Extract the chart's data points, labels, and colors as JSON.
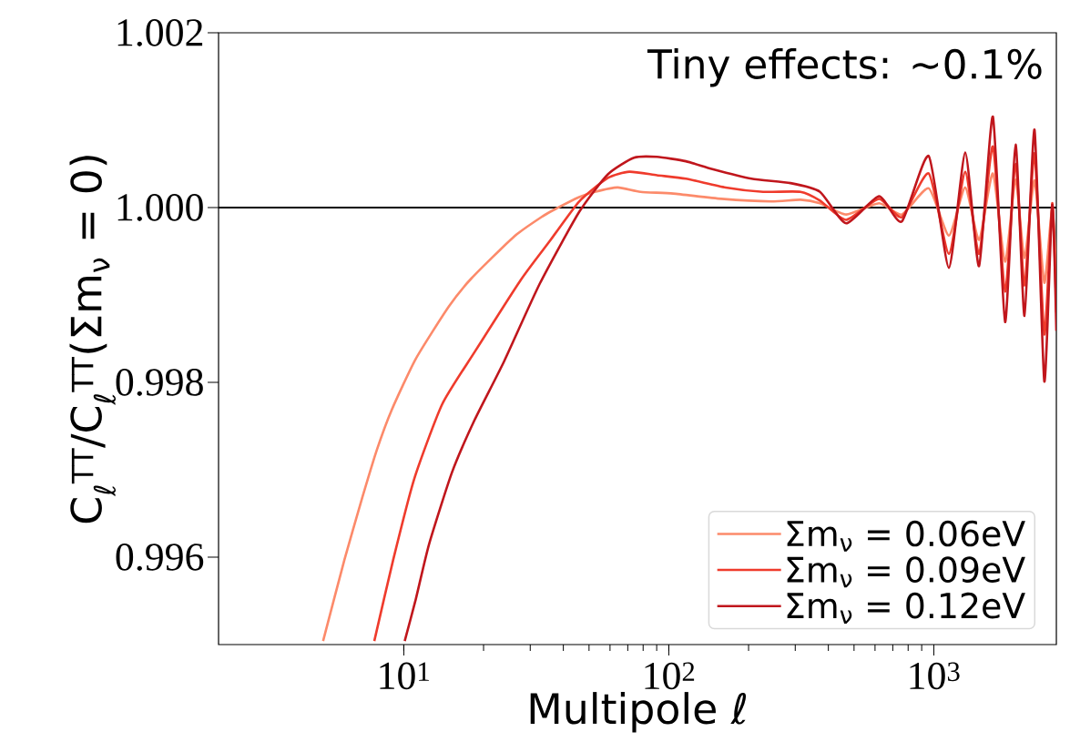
{
  "chart_data": {
    "type": "line",
    "xlabel": "Multipole ℓ",
    "ylabel": "C$_{ℓ}$$^{TT}$/C$_{ℓ}$$^{TT}$(Σm$_{ν}$ = 0)",
    "log": "x",
    "xlim": [
      2,
      2900
    ],
    "ylim": [
      0.995,
      1.002
    ],
    "xticks": [
      {
        "value": 10,
        "label": "10$^{1}$"
      },
      {
        "value": 100,
        "label": "10$^{2}$"
      },
      {
        "value": 1000,
        "label": "10$^{3}$"
      }
    ],
    "yticks": [
      0.996,
      0.998,
      {
        "value": 1,
        "label": "1.000"
      },
      1.002
    ],
    "annotations": [
      "Tiny effects: ~0.1%"
    ],
    "ref_lines": [
      {
        "axis": "y",
        "value": 1,
        "color": "#000000"
      }
    ],
    "legend": "bottom right",
    "series": [
      {
        "name": "Σm$_{ν}$ = 0.06eV",
        "color": "#fc8a6a",
        "x": [
          4.96,
          5.97,
          6.97,
          7.92,
          8.99,
          11.1,
          14.8,
          18.0,
          26.1,
          33.4,
          37.7,
          45.9,
          52.6,
          64.1,
          78.2,
          104,
          158,
          243,
          314,
          372,
          467,
          621,
          757,
          957,
          1140,
          1314,
          1482,
          1671,
          1858,
          2035,
          2199,
          2399,
          2612,
          2798,
          2900
        ],
        "values": [
          0.99504,
          0.99597,
          0.99668,
          0.99723,
          0.99768,
          0.99827,
          0.99887,
          0.99919,
          0.99967,
          0.9999,
          0.99999,
          1.00012,
          1.00018,
          1.00023,
          1.00018,
          1.00016,
          1.0001,
          1.00007,
          1.00009,
          1.00005,
          0.99992,
          1.00005,
          0.99992,
          1.00022,
          0.99968,
          1.00023,
          0.99963,
          1.00039,
          0.99938,
          1.00032,
          0.99942,
          1.00031,
          0.99914,
          1.00001,
          0.9992
        ]
      },
      {
        "name": "Σm$_{ν}$ = 0.09eV",
        "color": "#ef3b2c",
        "x": [
          7.74,
          9.12,
          10.96,
          13.96,
          18.53,
          27.6,
          35.6,
          45.9,
          58.9,
          71,
          90.2,
          116,
          164,
          227,
          314,
          372,
          467,
          621,
          757,
          957,
          1140,
          1314,
          1482,
          1671,
          1858,
          2035,
          2199,
          2399,
          2612,
          2798,
          2900
        ],
        "values": [
          0.99504,
          0.99597,
          0.9969,
          0.99775,
          0.99835,
          0.99917,
          0.99962,
          1.00007,
          1.00034,
          1.00041,
          1.00037,
          1.00033,
          1.00023,
          1.00018,
          1.00018,
          1.00008,
          0.99986,
          1.0001,
          0.99989,
          1.00039,
          0.99947,
          1.00041,
          0.99947,
          1.0007,
          0.99904,
          1.0005,
          0.99911,
          1.00062,
          0.99855,
          1.00005,
          0.9988
        ]
      },
      {
        "name": "Σm$_{ν}$ = 0.12eV",
        "color": "#c0161c",
        "x": [
          10.08,
          11.1,
          12.46,
          15.2,
          18.5,
          23.9,
          32.6,
          45.9,
          58.9,
          73.9,
          90.2,
          116,
          146,
          205,
          288,
          372,
          467,
          621,
          757,
          957,
          1140,
          1314,
          1482,
          1671,
          1858,
          2035,
          2199,
          2399,
          2612,
          2798,
          2900
        ],
        "values": [
          0.99504,
          0.99552,
          0.99615,
          0.99697,
          0.99757,
          0.99824,
          0.99913,
          0.99995,
          1.00038,
          1.00057,
          1.00058,
          1.00053,
          1.00044,
          1.00033,
          1.00028,
          1.00018,
          0.99982,
          1.00013,
          0.99984,
          1.00059,
          0.99931,
          1.00063,
          0.99933,
          1.00104,
          0.99869,
          1.00072,
          0.99876,
          1.00089,
          0.99801,
          1.00003,
          0.99859
        ]
      }
    ]
  }
}
